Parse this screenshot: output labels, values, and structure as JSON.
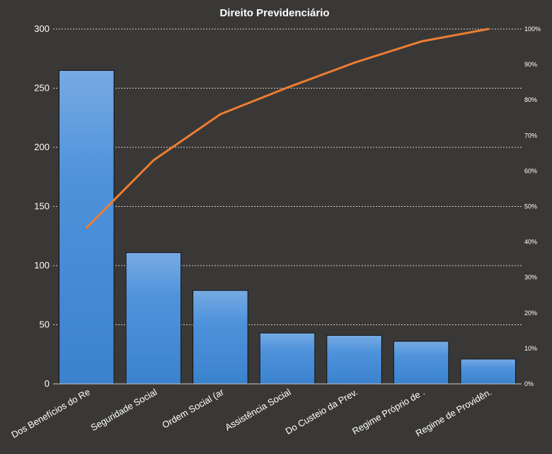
{
  "chart_data": {
    "type": "bar",
    "title": "Direito  Previdenciário",
    "categories": [
      "Dos Benefícios do Re",
      "Seguridade Social",
      "Ordem Social (ar",
      "Assistência Social",
      "Do Custeio da Prev.",
      "Regime Próprio  de   .",
      "Regime de Providên."
    ],
    "series": [
      {
        "type": "bar",
        "values": [
          265,
          111,
          79,
          43,
          41,
          36,
          21
        ],
        "color": "#4a90d9"
      },
      {
        "type": "line",
        "axis": "right",
        "values": [
          0.44,
          0.63,
          0.76,
          0.835,
          0.905,
          0.965,
          1.0
        ],
        "color": "#ed7d31"
      }
    ],
    "ylim": [
      0,
      300
    ],
    "yticks": [
      "0",
      "50",
      "100",
      "150",
      "200",
      "250",
      "300"
    ],
    "y2lim": [
      0,
      1
    ],
    "y2ticks": [
      "0%",
      "10%",
      "20%",
      "30%",
      "40%",
      "50%",
      "60%",
      "70%",
      "80%",
      "90%",
      "100%"
    ],
    "grid": true,
    "legend": "none"
  }
}
